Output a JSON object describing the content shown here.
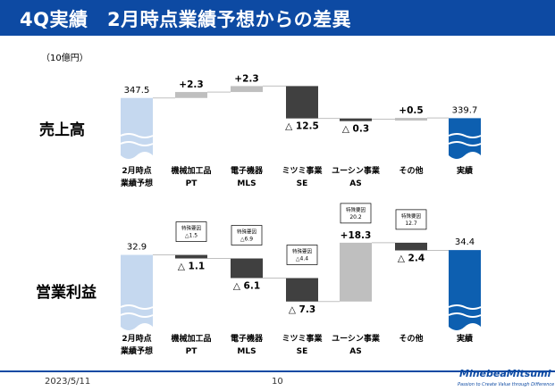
{
  "header": {
    "title": "4Q実績　2月時点業績予想からの差異"
  },
  "unit_label": "（10億円）",
  "footer": {
    "date": "2023/5/11",
    "page": "10",
    "logo": "MinebeaMitsumi",
    "logo_tagline": "Passion to Create Value through Difference"
  },
  "colors": {
    "header": "#0d4aa3",
    "start_bar": "#c5d8ef",
    "end_bar": "#0d5fb0",
    "decrease": "#404040",
    "increase": "#bfbfbf",
    "small_delta": "#bfbfbf"
  },
  "chart_data": [
    {
      "type": "waterfall",
      "title": "売上高",
      "categories": [
        {
          "line1": "2月時点",
          "line2": "業績予想"
        },
        {
          "line1": "機械加工品",
          "line2": "PT"
        },
        {
          "line1": "電子機器",
          "line2": "MLS"
        },
        {
          "line1": "ミツミ事業",
          "line2": "SE"
        },
        {
          "line1": "ユーシン事業",
          "line2": "AS"
        },
        {
          "line1": "その他",
          "line2": ""
        },
        {
          "line1": "実績",
          "line2": ""
        }
      ],
      "values": [
        347.5,
        2.3,
        2.3,
        -12.5,
        -0.3,
        0.5,
        339.7
      ],
      "labels": [
        "347.5",
        "+2.3",
        "+2.3",
        "△ 12.5",
        "△ 0.3",
        "+0.5",
        "339.7"
      ],
      "special_notes": [
        null,
        null,
        null,
        null,
        null,
        null,
        null
      ]
    },
    {
      "type": "waterfall",
      "title": "営業利益",
      "categories": [
        {
          "line1": "2月時点",
          "line2": "業績予想"
        },
        {
          "line1": "機械加工品",
          "line2": "PT"
        },
        {
          "line1": "電子機器",
          "line2": "MLS"
        },
        {
          "line1": "ミツミ事業",
          "line2": "SE"
        },
        {
          "line1": "ユーシン事業",
          "line2": "AS"
        },
        {
          "line1": "その他",
          "line2": ""
        },
        {
          "line1": "実績",
          "line2": ""
        }
      ],
      "values": [
        32.9,
        -1.1,
        -6.1,
        -7.3,
        18.3,
        -2.4,
        34.4
      ],
      "labels": [
        "32.9",
        "△ 1.1",
        "△ 6.1",
        "△ 7.3",
        "+18.3",
        "△ 2.4",
        "34.4"
      ],
      "special_notes": [
        null,
        {
          "title": "特殊要因",
          "value": "△1.5"
        },
        {
          "title": "特殊要因",
          "value": "△6.9"
        },
        {
          "title": "特殊要因",
          "value": "△4.4"
        },
        {
          "title": "特殊要因",
          "value": "20.2"
        },
        {
          "title": "特殊要因",
          "value": "12.7"
        },
        null
      ]
    }
  ]
}
